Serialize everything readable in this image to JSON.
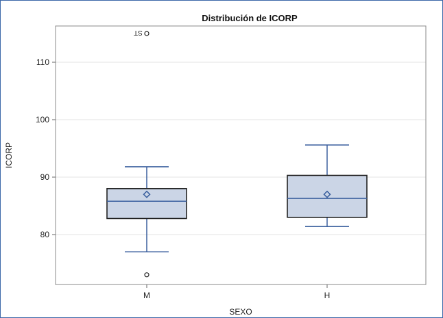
{
  "chart_data": {
    "type": "box",
    "title": "Distribución de ICORP",
    "xlabel": "SEXO",
    "ylabel": "ICORP",
    "categories": [
      "M",
      "H"
    ],
    "ylim": [
      71,
      116
    ],
    "yticks": [
      80,
      90,
      100,
      110
    ],
    "grid": true,
    "boxes": [
      {
        "category": "M",
        "whisker_low": 77,
        "q1": 82.8,
        "median": 85.8,
        "q3": 88.0,
        "whisker_high": 91.8,
        "mean": 87.0,
        "outliers": [
          {
            "value": 73,
            "label": ""
          },
          {
            "value": 115,
            "label": "ST"
          }
        ]
      },
      {
        "category": "H",
        "whisker_low": 81.4,
        "q1": 83.0,
        "median": 86.3,
        "q3": 90.3,
        "whisker_high": 95.6,
        "mean": 87.0,
        "outliers": []
      }
    ],
    "colors": {
      "box_fill": "#cbd5e6",
      "line": "#3a5f9e",
      "box_edge": "#222222",
      "grid": "#e3e3e3",
      "frame": "#3a67a8"
    }
  }
}
